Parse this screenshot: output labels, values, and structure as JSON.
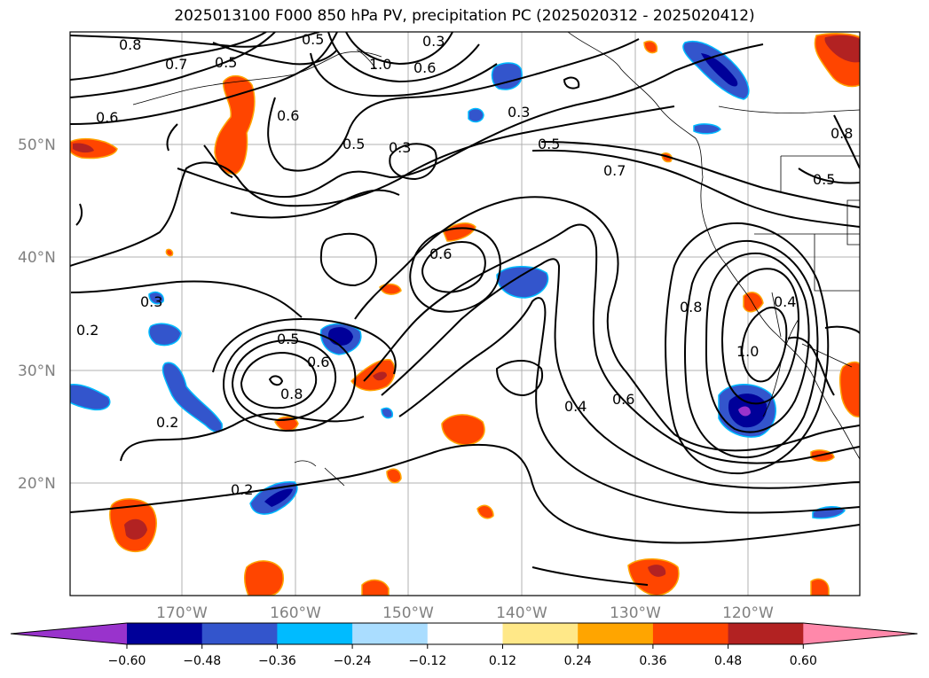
{
  "title": "2025013100 F000 850 hPa PV, precipitation PC (2025020312 - 2025020412)",
  "lat_labels": [
    "50°N",
    "40°N",
    "30°N",
    "20°N"
  ],
  "lon_labels": [
    "170°W",
    "160°W",
    "150°W",
    "140°W",
    "130°W",
    "120°W"
  ],
  "contour_labels": [
    "0.8",
    "0.7",
    "0.5",
    "0.6",
    "0.5",
    "0.3",
    "1.0",
    "0.6",
    "0.3",
    "0.5",
    "0.7",
    "0.5",
    "0.8",
    "0.6",
    "0.5",
    "0.6",
    "0.3",
    "0.2",
    "0.5",
    "0.6",
    "0.8",
    "0.2",
    "0.2",
    "0.3",
    "0.4",
    "0.6",
    "0.8",
    "1.0",
    "0.4"
  ],
  "colorbar": {
    "colors": [
      "#9933cc",
      "#000099",
      "#3355cc",
      "#00bbff",
      "#aaddff",
      "#ffffff",
      "#ffe888",
      "#ffa500",
      "#ff4500",
      "#b22222",
      "#ff88aa"
    ],
    "tick_labels": [
      "−0.60",
      "−0.48",
      "−0.36",
      "−0.24",
      "−0.12",
      "0.12",
      "0.24",
      "0.36",
      "0.48",
      "0.60"
    ]
  }
}
